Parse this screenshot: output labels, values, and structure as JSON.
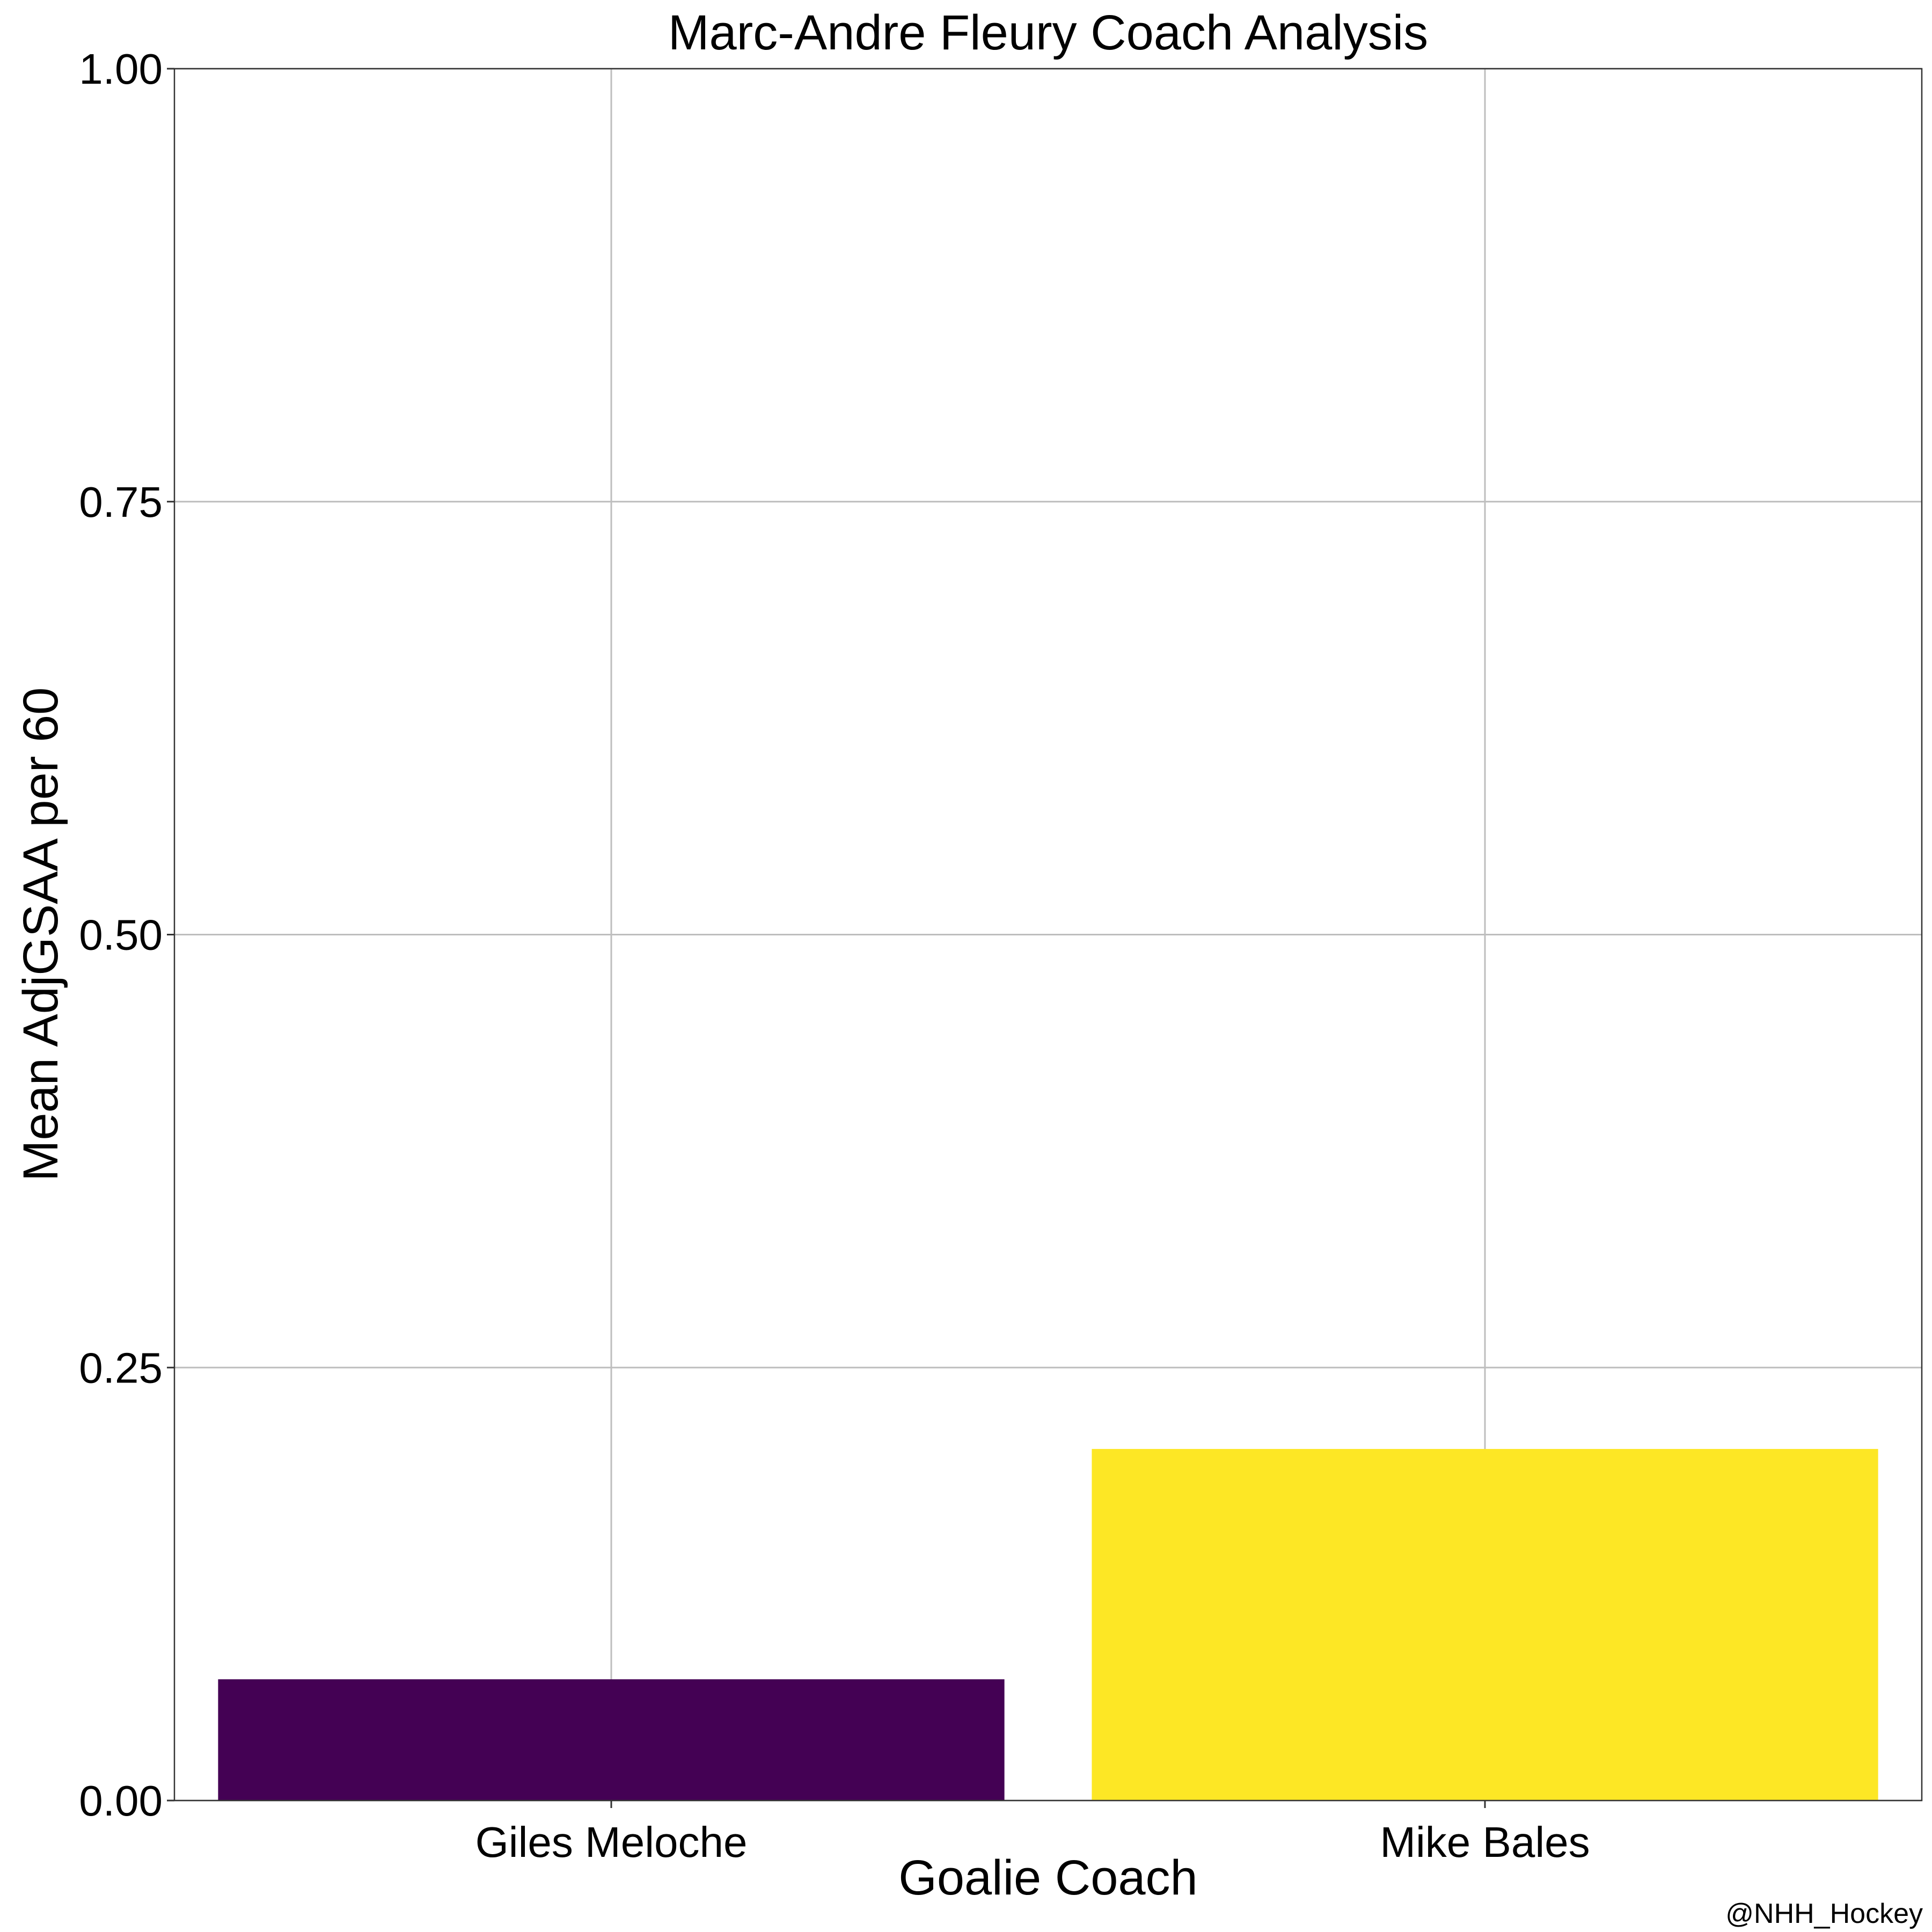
{
  "chart_data": {
    "type": "bar",
    "title": "Marc-Andre Fleury Coach Analysis",
    "xlabel": "Goalie Coach",
    "ylabel": "Mean AdjGSAA per 60",
    "categories": [
      "Giles Meloche",
      "Mike Bales"
    ],
    "values": [
      0.07,
      0.203
    ],
    "colors": [
      "#440154",
      "#FDE725"
    ],
    "ylim": [
      0,
      1
    ],
    "yticks": [
      "0.00",
      "0.25",
      "0.50",
      "0.75",
      "1.00"
    ],
    "ytick_values": [
      0,
      0.25,
      0.5,
      0.75,
      1.0
    ],
    "grid": true,
    "legend": "none"
  },
  "caption": "@NHH_Hockey",
  "colors": {
    "grid": "#BEBEBE",
    "axis": "#333333",
    "background": "#FFFFFF"
  }
}
